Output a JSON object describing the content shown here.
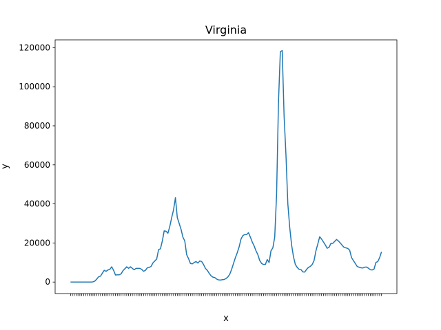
{
  "chart_data": {
    "type": "line",
    "title": "Virginia",
    "xlabel": "x",
    "ylabel": "y",
    "ylim": [
      -5900,
      124000
    ],
    "yticks": [
      0,
      20000,
      40000,
      60000,
      80000,
      100000,
      120000
    ],
    "grid": false,
    "legend": "none",
    "series_color": "#1f77b4",
    "series": [
      {
        "values": [
          0,
          0,
          0,
          0,
          0,
          0,
          0,
          0,
          0,
          0,
          0,
          0,
          100,
          500,
          1500,
          2700,
          3000,
          4500,
          6000,
          5500,
          6200,
          6500,
          7800,
          6000,
          3600,
          3700,
          3700,
          4200,
          5800,
          6800,
          7800,
          7000,
          7800,
          7000,
          6300,
          7000,
          7000,
          7000,
          6500,
          5500,
          6000,
          7300,
          7500,
          8000,
          9800,
          10800,
          11800,
          16600,
          17000,
          21000,
          26200,
          26000,
          25000,
          28500,
          33000,
          37000,
          43200,
          33000,
          30000,
          27000,
          23000,
          21000,
          14000,
          12000,
          9500,
          9300,
          10000,
          10500,
          9700,
          10800,
          10500,
          9000,
          7000,
          6000,
          4500,
          3200,
          2500,
          2300,
          1500,
          1100,
          1000,
          1200,
          1300,
          1800,
          2600,
          4000,
          6500,
          9500,
          12500,
          15000,
          18000,
          22000,
          23800,
          24300,
          24300,
          25300,
          23000,
          20500,
          18500,
          16000,
          14000,
          11000,
          9500,
          9000,
          9000,
          11500,
          10000,
          16000,
          17500,
          23000,
          45000,
          92000,
          118000,
          118500,
          85000,
          65000,
          40000,
          28000,
          19000,
          13000,
          9000,
          7500,
          6500,
          6400,
          5200,
          5100,
          6500,
          7500,
          8000,
          9000,
          11000,
          16000,
          19500,
          23200,
          22000,
          20500,
          19000,
          17300,
          17800,
          19800,
          19800,
          20800,
          21800,
          21000,
          20000,
          18800,
          17800,
          17500,
          17200,
          16300,
          12500,
          11000,
          9500,
          8000,
          7600,
          7300,
          7200,
          7600,
          7700,
          7100,
          6300,
          6200,
          6600,
          10000,
          10500,
          12500,
          15500
        ]
      }
    ]
  }
}
